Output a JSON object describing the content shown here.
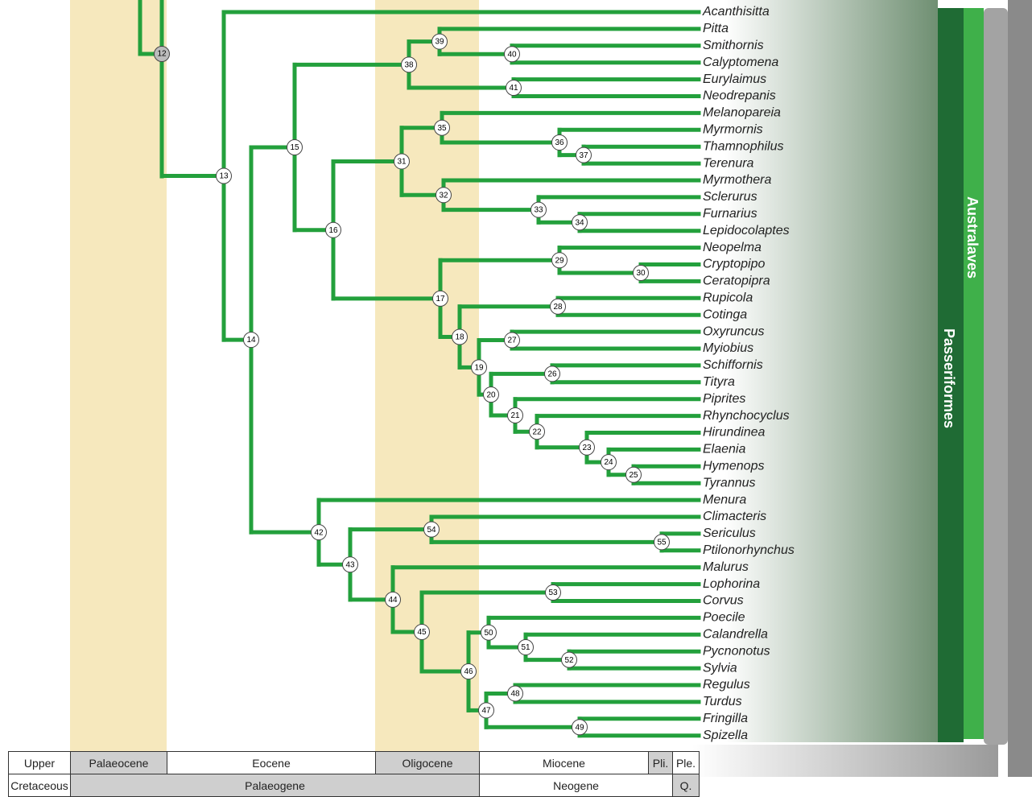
{
  "partial_node": {
    "label": "12"
  },
  "tree": {
    "label": "13",
    "children": [
      {
        "taxon": "Acanthisitta"
      },
      {
        "label": "14",
        "children": [
          {
            "label": "15",
            "children": [
              {
                "label": "38",
                "children": [
                  {
                    "label": "39",
                    "children": [
                      {
                        "taxon": "Pitta"
                      },
                      {
                        "label": "40",
                        "children": [
                          {
                            "taxon": "Smithornis"
                          },
                          {
                            "taxon": "Calyptomena"
                          }
                        ]
                      }
                    ]
                  },
                  {
                    "label": "41",
                    "children": [
                      {
                        "taxon": "Eurylaimus"
                      },
                      {
                        "taxon": "Neodrepanis"
                      }
                    ]
                  }
                ]
              },
              {
                "label": "16",
                "children": [
                  {
                    "label": "31",
                    "children": [
                      {
                        "label": "35",
                        "children": [
                          {
                            "taxon": "Melanopareia"
                          },
                          {
                            "label": "36",
                            "children": [
                              {
                                "taxon": "Myrmornis"
                              },
                              {
                                "label": "37",
                                "children": [
                                  {
                                    "taxon": "Thamnophilus"
                                  },
                                  {
                                    "taxon": "Terenura"
                                  }
                                ]
                              }
                            ]
                          }
                        ]
                      },
                      {
                        "label": "32",
                        "children": [
                          {
                            "taxon": "Myrmothera"
                          },
                          {
                            "label": "33",
                            "children": [
                              {
                                "taxon": "Sclerurus"
                              },
                              {
                                "label": "34",
                                "children": [
                                  {
                                    "taxon": "Furnarius"
                                  },
                                  {
                                    "taxon": "Lepidocolaptes"
                                  }
                                ]
                              }
                            ]
                          }
                        ]
                      }
                    ]
                  },
                  {
                    "label": "17",
                    "children": [
                      {
                        "label": "29",
                        "children": [
                          {
                            "taxon": "Neopelma"
                          },
                          {
                            "label": "30",
                            "children": [
                              {
                                "taxon": "Cryptopipo"
                              },
                              {
                                "taxon": "Ceratopipra"
                              }
                            ]
                          }
                        ]
                      },
                      {
                        "label": "18",
                        "children": [
                          {
                            "label": "28",
                            "children": [
                              {
                                "taxon": "Rupicola"
                              },
                              {
                                "taxon": "Cotinga"
                              }
                            ]
                          },
                          {
                            "label": "19",
                            "children": [
                              {
                                "label": "27",
                                "children": [
                                  {
                                    "taxon": "Oxyruncus"
                                  },
                                  {
                                    "taxon": "Myiobius"
                                  }
                                ]
                              },
                              {
                                "label": "20",
                                "children": [
                                  {
                                    "label": "26",
                                    "children": [
                                      {
                                        "taxon": "Schiffornis"
                                      },
                                      {
                                        "taxon": "Tityra"
                                      }
                                    ]
                                  },
                                  {
                                    "label": "21",
                                    "children": [
                                      {
                                        "taxon": "Piprites"
                                      },
                                      {
                                        "label": "22",
                                        "children": [
                                          {
                                            "taxon": "Rhynchocyclus"
                                          },
                                          {
                                            "label": "23",
                                            "children": [
                                              {
                                                "taxon": "Hirundinea"
                                              },
                                              {
                                                "label": "24",
                                                "children": [
                                                  {
                                                    "taxon": "Elaenia"
                                                  },
                                                  {
                                                    "label": "25",
                                                    "children": [
                                                      {
                                                        "taxon": "Hymenops"
                                                      },
                                                      {
                                                        "taxon": "Tyrannus"
                                                      }
                                                    ]
                                                  }
                                                ]
                                              }
                                            ]
                                          }
                                        ]
                                      }
                                    ]
                                  }
                                ]
                              }
                            ]
                          }
                        ]
                      }
                    ]
                  }
                ]
              }
            ]
          },
          {
            "label": "42",
            "children": [
              {
                "taxon": "Menura"
              },
              {
                "label": "43",
                "children": [
                  {
                    "label": "54",
                    "children": [
                      {
                        "taxon": "Climacteris"
                      },
                      {
                        "label": "55",
                        "children": [
                          {
                            "taxon": "Sericulus"
                          },
                          {
                            "taxon": "Ptilonorhynchus"
                          }
                        ]
                      }
                    ]
                  },
                  {
                    "label": "44",
                    "children": [
                      {
                        "taxon": "Malurus"
                      },
                      {
                        "label": "45",
                        "children": [
                          {
                            "label": "53",
                            "children": [
                              {
                                "taxon": "Lophorina"
                              },
                              {
                                "taxon": "Corvus"
                              }
                            ]
                          },
                          {
                            "label": "46",
                            "children": [
                              {
                                "label": "50",
                                "children": [
                                  {
                                    "taxon": "Poecile"
                                  },
                                  {
                                    "label": "51",
                                    "children": [
                                      {
                                        "taxon": "Calandrella"
                                      },
                                      {
                                        "label": "52",
                                        "children": [
                                          {
                                            "taxon": "Pycnonotus"
                                          },
                                          {
                                            "taxon": "Sylvia"
                                          }
                                        ]
                                      }
                                    ]
                                  }
                                ]
                              },
                              {
                                "label": "47",
                                "children": [
                                  {
                                    "label": "48",
                                    "children": [
                                      {
                                        "taxon": "Regulus"
                                      },
                                      {
                                        "taxon": "Turdus"
                                      }
                                    ]
                                  },
                                  {
                                    "label": "49",
                                    "children": [
                                      {
                                        "taxon": "Fringilla"
                                      },
                                      {
                                        "taxon": "Spizella"
                                      }
                                    ]
                                  }
                                ]
                              }
                            ]
                          }
                        ]
                      }
                    ]
                  }
                ]
              }
            ]
          }
        ]
      }
    ]
  },
  "clades": [
    "Australaves",
    "Passeriformes"
  ],
  "timescale": {
    "epochs": [
      "Upper",
      "Palaeocene",
      "Eocene",
      "Oligocene",
      "Miocene",
      "Pli.",
      "Ple."
    ],
    "periods": [
      "Cretaceous",
      "Palaeogene",
      "Neogene",
      "Q."
    ]
  }
}
